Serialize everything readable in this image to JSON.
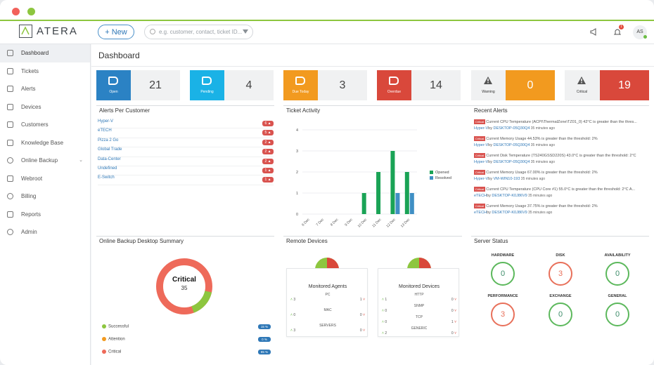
{
  "app": {
    "name": "ATERA"
  },
  "topbar": {
    "new_label": "New",
    "search_placeholder": "e.g. customer, contact, ticket ID...",
    "notification_count": "1",
    "user_initials": "AS"
  },
  "sidebar": {
    "items": [
      {
        "label": "Dashboard",
        "active": true
      },
      {
        "label": "Tickets"
      },
      {
        "label": "Alerts"
      },
      {
        "label": "Devices"
      },
      {
        "label": "Customers"
      },
      {
        "label": "Knowledge Base"
      },
      {
        "label": "Online Backup",
        "expandable": true
      },
      {
        "label": "Webroot"
      },
      {
        "label": "Billing"
      },
      {
        "label": "Reports"
      },
      {
        "label": "Admin"
      }
    ]
  },
  "page": {
    "title": "Dashboard"
  },
  "tiles": [
    {
      "label": "Open",
      "value": "21",
      "color": "#2b82c4"
    },
    {
      "label": "Pending",
      "value": "4",
      "color": "#1ab2e6"
    },
    {
      "label": "Due Today",
      "value": "3",
      "color": "#f29a1f"
    },
    {
      "label": "Overdue",
      "value": "14",
      "color": "#d9483b"
    },
    {
      "label": "Warning",
      "value": "0",
      "color": "#f29a1f"
    },
    {
      "label": "Critical",
      "value": "19",
      "color": "#d9483b"
    }
  ],
  "alerts_per_customer": {
    "title": "Alerts Per Customer",
    "rows": [
      {
        "name": "Hyper-V",
        "count": "6"
      },
      {
        "name": "eTECH",
        "count": "5"
      },
      {
        "name": "Pizza 2 Go",
        "count": "2"
      },
      {
        "name": "Global Trade",
        "count": "2"
      },
      {
        "name": "Data-Center",
        "count": "2"
      },
      {
        "name": "Undefined",
        "count": "1"
      },
      {
        "name": "E-Switch",
        "count": "1"
      }
    ]
  },
  "chart_data": {
    "type": "bar",
    "title": "Ticket Activity",
    "categories": [
      "6 Dec",
      "7 Dec",
      "8 Dec",
      "9 Dec",
      "10 Dec",
      "11 Dec",
      "12 Dec",
      "13 Dec"
    ],
    "series": [
      {
        "name": "Opened",
        "values": [
          0,
          0,
          0,
          0,
          1,
          2,
          3,
          2
        ],
        "color": "#1aa356"
      },
      {
        "name": "Resolved",
        "values": [
          0,
          0,
          0,
          0,
          0,
          0,
          1,
          1
        ],
        "color": "#3f8fc4"
      }
    ],
    "ylim": [
      0,
      4
    ],
    "yticks": [
      "0",
      "1",
      "2",
      "3",
      "4"
    ],
    "legend": "top-right"
  },
  "recent_alerts": {
    "title": "Recent Alerts",
    "badge": "Critical",
    "items": [
      {
        "text": "Current CPU Temperature (ACPI\\ThermalZone\\TZ01_0) 42°C is greater than the thres...",
        "source": "Hyper-V",
        "by": "by",
        "device": "DESKTOP-05Q30Q4",
        "time": "35 minutes ago"
      },
      {
        "text": "Current Memory Usage 44.53% is greater than the threshold: 2%",
        "source": "Hyper-V",
        "by": "by",
        "device": "DESKTOP-05Q30Q4",
        "time": "35 minutes ago"
      },
      {
        "text": "Current Disk Temperature (TS240GSSD220S) 43.0°C is greater than the threshold: 2°C",
        "source": "Hyper-V",
        "by": "by",
        "device": "DESKTOP-05Q30Q4",
        "time": "35 minutes ago"
      },
      {
        "text": "Current Memory Usage 67.00% is greater than the threshold: 2%",
        "source": "Hyper-V",
        "by": "by",
        "device": "VM-WIN10-193",
        "time": "35 minutes ago"
      },
      {
        "text": "Current CPU Temperature (CPU Core #1) 55.0°C is greater than the threshold: 2°C A...",
        "source": "eTECH",
        "by": "by",
        "device": "DESKTOP-K0J86V9",
        "time": "35 minutes ago"
      },
      {
        "text": "Current Memory Usage 37.75% is greater than the threshold: 2%",
        "source": "eTECH",
        "by": "by",
        "device": "DESKTOP-K0J86V9",
        "time": "35 minutes ago"
      }
    ]
  },
  "backup_summary": {
    "title": "Online Backup Desktop Summary",
    "center_label": "Critical",
    "center_value": "35",
    "legend": [
      {
        "label": "Successful",
        "pct": "15 %",
        "color": "#8dc63f"
      },
      {
        "label": "Attention",
        "pct": "0 %",
        "color": "#f29a1f"
      },
      {
        "label": "Critical",
        "pct": "85 %",
        "color": "#ee6a5a"
      }
    ]
  },
  "remote_devices": {
    "title": "Remote Devices",
    "agents": {
      "title": "Monitored Agents",
      "rows": [
        {
          "label": "PC",
          "up": "3",
          "down": "1"
        },
        {
          "label": "MAC",
          "up": "0",
          "down": "0"
        },
        {
          "label": "SERVERS",
          "up": "3",
          "down": "0"
        }
      ]
    },
    "devices": {
      "title": "Monitored Devices",
      "rows": [
        {
          "label": "HTTP",
          "up": "1",
          "down": "0"
        },
        {
          "label": "SNMP",
          "up": "0",
          "down": "0"
        },
        {
          "label": "TCP",
          "up": "0",
          "down": "1"
        },
        {
          "label": "GENERIC",
          "up": "2",
          "down": "0"
        }
      ]
    }
  },
  "server_status": {
    "title": "Server Status",
    "items": [
      {
        "label": "HARDWARE",
        "value": "0",
        "state": "green"
      },
      {
        "label": "DISK",
        "value": "3",
        "state": "red"
      },
      {
        "label": "AVAILABILITY",
        "value": "0",
        "state": "green"
      },
      {
        "label": "PERFORMANCE",
        "value": "3",
        "state": "red"
      },
      {
        "label": "EXCHANGE",
        "value": "0",
        "state": "green"
      },
      {
        "label": "GENERAL",
        "value": "0",
        "state": "green"
      }
    ]
  }
}
